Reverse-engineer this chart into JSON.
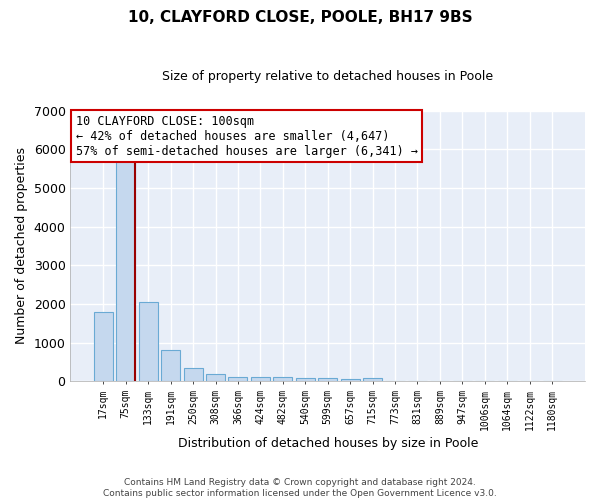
{
  "title": "10, CLAYFORD CLOSE, POOLE, BH17 9BS",
  "subtitle": "Size of property relative to detached houses in Poole",
  "xlabel": "Distribution of detached houses by size in Poole",
  "ylabel": "Number of detached properties",
  "bar_color": "#c5d8ee",
  "bar_edge_color": "#6aaad4",
  "background_color": "#e8eef8",
  "grid_color": "#ffffff",
  "categories": [
    "17sqm",
    "75sqm",
    "133sqm",
    "191sqm",
    "250sqm",
    "308sqm",
    "366sqm",
    "424sqm",
    "482sqm",
    "540sqm",
    "599sqm",
    "657sqm",
    "715sqm",
    "773sqm",
    "831sqm",
    "889sqm",
    "947sqm",
    "1006sqm",
    "1064sqm",
    "1122sqm",
    "1180sqm"
  ],
  "values": [
    1780,
    5780,
    2060,
    820,
    340,
    195,
    120,
    115,
    100,
    80,
    75,
    70,
    80,
    0,
    0,
    0,
    0,
    0,
    0,
    0,
    0
  ],
  "ylim": [
    0,
    7000
  ],
  "yticks": [
    0,
    1000,
    2000,
    3000,
    4000,
    5000,
    6000,
    7000
  ],
  "property_line_color": "#990000",
  "annotation_text": "10 CLAYFORD CLOSE: 100sqm\n← 42% of detached houses are smaller (4,647)\n57% of semi-detached houses are larger (6,341) →",
  "annotation_box_color": "#ffffff",
  "annotation_box_edge": "#cc0000",
  "footer1": "Contains HM Land Registry data © Crown copyright and database right 2024.",
  "footer2": "Contains public sector information licensed under the Open Government Licence v3.0."
}
